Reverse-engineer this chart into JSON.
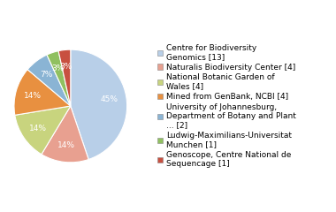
{
  "labels": [
    "Centre for Biodiversity\nGenomics [13]",
    "Naturalis Biodiversity Center [4]",
    "National Botanic Garden of\nWales [4]",
    "Mined from GenBank, NCBI [4]",
    "University of Johannesburg,\nDepartment of Botany and Plant\n... [2]",
    "Ludwig-Maximilians-Universitat\nMunchen [1]",
    "Genoscope, Centre National de\nSequencage [1]"
  ],
  "values": [
    13,
    4,
    4,
    4,
    2,
    1,
    1
  ],
  "colors": [
    "#b8cfe8",
    "#e8a090",
    "#c8d47e",
    "#e89040",
    "#8ab4d4",
    "#90c060",
    "#c85040"
  ],
  "startangle": 90,
  "text_color": "white",
  "fontsize_pct": 6.5,
  "fontsize_legend": 6.5,
  "background_color": "#ffffff"
}
